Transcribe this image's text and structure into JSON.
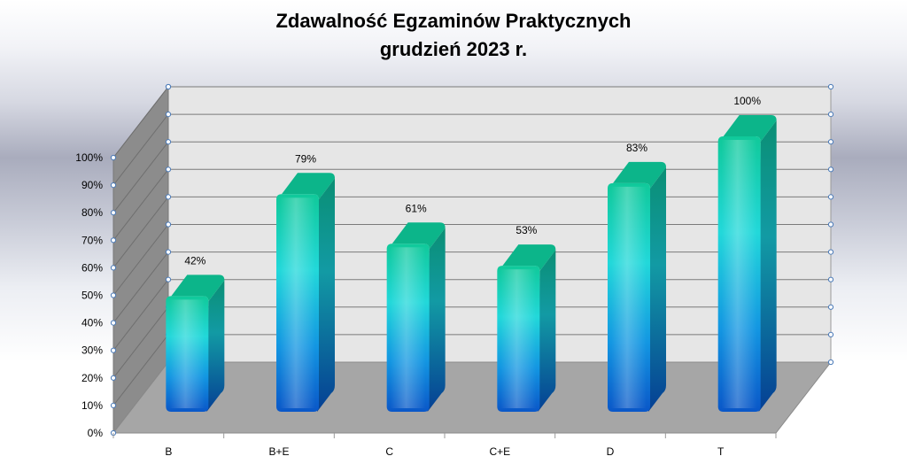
{
  "chart_data": {
    "type": "bar",
    "title": "Zdawalność Egzaminów Praktycznych",
    "subtitle": "grudzień 2023 r.",
    "categories": [
      "B",
      "B+E",
      "C",
      "C+E",
      "D",
      "T"
    ],
    "values": [
      42,
      79,
      61,
      53,
      83,
      100
    ],
    "data_labels": [
      "42%",
      "79%",
      "61%",
      "53%",
      "83%",
      "100%"
    ],
    "y_ticks": [
      "0%",
      "10%",
      "20%",
      "30%",
      "40%",
      "50%",
      "60%",
      "70%",
      "80%",
      "90%",
      "100%"
    ],
    "ylim": [
      0,
      100
    ],
    "grid": true,
    "style": "3d-column",
    "legend": "none",
    "colors": {
      "bar_top": "#10c99a",
      "bar_mid": "#22d8da",
      "bar_bottom": "#0a57c8",
      "floor": "#a6a6a6",
      "wall": "#e6e6e6"
    }
  }
}
